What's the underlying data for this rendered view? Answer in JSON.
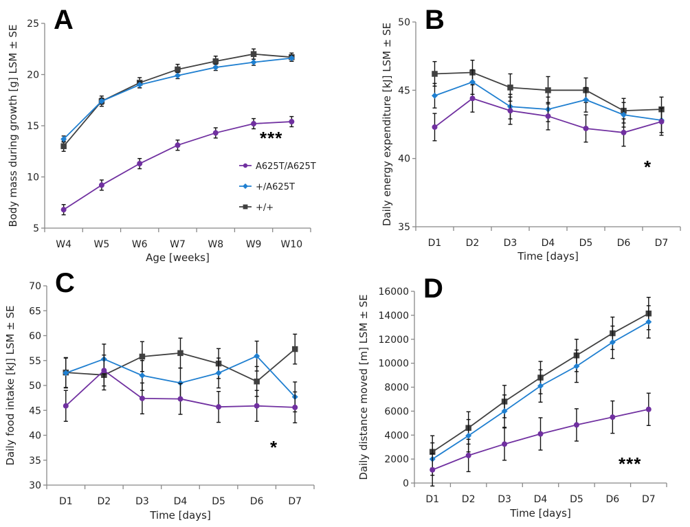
{
  "colors": {
    "A625T/A625T": "#7030a0",
    "+/A625T": "#1f7fd0",
    "+/+": "#404040"
  },
  "chart_data": [
    {
      "panel": "A",
      "type": "line",
      "xlabel": "Age [weeks]",
      "ylabel": "Body mass during growth [g] LSM ± SE",
      "categories": [
        "W4",
        "W5",
        "W6",
        "W7",
        "W8",
        "W9",
        "W10"
      ],
      "ylim": [
        5,
        25
      ],
      "yticks": [
        5,
        10,
        15,
        20,
        25
      ],
      "significance": "***",
      "legend": {
        "placement": "right-center",
        "entries": [
          "A625T/A625T",
          "+/A625T",
          "+/+"
        ]
      },
      "series": [
        {
          "name": "A625T/A625T",
          "marker": "circle",
          "values": [
            6.8,
            9.2,
            11.3,
            13.1,
            14.3,
            15.2,
            15.4
          ],
          "se": [
            0.5,
            0.5,
            0.5,
            0.5,
            0.5,
            0.5,
            0.5
          ]
        },
        {
          "name": "+/A625T",
          "marker": "diamond",
          "values": [
            13.7,
            17.4,
            19.0,
            19.9,
            20.7,
            21.2,
            21.6
          ],
          "se": [
            0.3,
            0.3,
            0.3,
            0.3,
            0.3,
            0.3,
            0.3
          ]
        },
        {
          "name": "+/+",
          "marker": "square",
          "values": [
            13.0,
            17.4,
            19.2,
            20.5,
            21.3,
            22.0,
            21.7
          ],
          "se": [
            0.5,
            0.5,
            0.5,
            0.5,
            0.5,
            0.5,
            0.4
          ]
        }
      ]
    },
    {
      "panel": "B",
      "type": "line",
      "xlabel": "Time [days]",
      "ylabel": "Daily energy expenditure [kJ] LSM ± SE",
      "categories": [
        "D1",
        "D2",
        "D3",
        "D4",
        "D5",
        "D6",
        "D7"
      ],
      "ylim": [
        35,
        50
      ],
      "yticks": [
        35,
        40,
        45,
        50
      ],
      "significance": "*",
      "series": [
        {
          "name": "A625T/A625T",
          "marker": "circle",
          "values": [
            42.3,
            44.4,
            43.5,
            43.1,
            42.2,
            41.9,
            42.7
          ],
          "se": [
            1.0,
            1.0,
            1.0,
            1.0,
            1.0,
            1.0,
            1.0
          ]
        },
        {
          "name": "+/A625T",
          "marker": "diamond",
          "values": [
            44.6,
            45.6,
            43.8,
            43.6,
            44.3,
            43.2,
            42.8
          ],
          "se": [
            0.9,
            0.9,
            0.9,
            0.9,
            0.9,
            0.9,
            0.9
          ]
        },
        {
          "name": "+/+",
          "marker": "square",
          "values": [
            46.2,
            46.3,
            45.2,
            45.0,
            45.0,
            43.5,
            43.6
          ],
          "se": [
            0.9,
            0.9,
            1.0,
            1.0,
            0.9,
            0.9,
            0.9
          ]
        }
      ]
    },
    {
      "panel": "C",
      "type": "line",
      "xlabel": "Time [days]",
      "ylabel": "Daily food intake [kJ] LSM ± SE",
      "categories": [
        "D1",
        "D2",
        "D3",
        "D4",
        "D5",
        "D6",
        "D7"
      ],
      "ylim": [
        30,
        70
      ],
      "yticks": [
        30,
        35,
        40,
        45,
        50,
        55,
        60,
        65,
        70
      ],
      "significance": "*",
      "series": [
        {
          "name": "A625T/A625T",
          "marker": "circle",
          "values": [
            45.9,
            53.0,
            47.4,
            47.3,
            45.7,
            45.9,
            45.6
          ],
          "se": [
            3.1,
            3.1,
            3.1,
            3.1,
            3.1,
            3.1,
            3.1
          ]
        },
        {
          "name": "+/A625T",
          "marker": "diamond",
          "values": [
            52.5,
            55.3,
            52.0,
            50.5,
            52.5,
            55.9,
            47.7
          ],
          "se": [
            3.0,
            3.0,
            3.0,
            3.0,
            3.0,
            3.0,
            3.0
          ]
        },
        {
          "name": "+/+",
          "marker": "square",
          "values": [
            52.6,
            52.1,
            55.8,
            56.5,
            54.4,
            50.8,
            57.3
          ],
          "se": [
            3.0,
            3.0,
            3.0,
            3.0,
            3.0,
            3.0,
            3.0
          ]
        }
      ]
    },
    {
      "panel": "D",
      "type": "line",
      "xlabel": "Time [days]",
      "ylabel": "Daily distance moved [m] LSM ± SE",
      "categories": [
        "D1",
        "D2",
        "D3",
        "D4",
        "D5",
        "D6",
        "D7"
      ],
      "ylim": [
        0,
        16000
      ],
      "yticks": [
        0,
        2000,
        4000,
        6000,
        8000,
        10000,
        12000,
        14000,
        16000
      ],
      "significance": "***",
      "series": [
        {
          "name": "A625T/A625T",
          "marker": "circle",
          "values": [
            1100,
            2300,
            3250,
            4100,
            4850,
            5500,
            6150
          ],
          "se": [
            1350,
            1350,
            1350,
            1350,
            1350,
            1350,
            1350
          ]
        },
        {
          "name": "+/A625T",
          "marker": "diamond",
          "values": [
            2000,
            3950,
            6000,
            8100,
            9750,
            11750,
            13450
          ],
          "se": [
            1350,
            1350,
            1350,
            1350,
            1350,
            1350,
            1350
          ]
        },
        {
          "name": "+/+",
          "marker": "square",
          "values": [
            2600,
            4600,
            6800,
            8800,
            10650,
            12500,
            14150
          ],
          "se": [
            1350,
            1350,
            1350,
            1350,
            1350,
            1350,
            1350
          ]
        }
      ]
    }
  ]
}
